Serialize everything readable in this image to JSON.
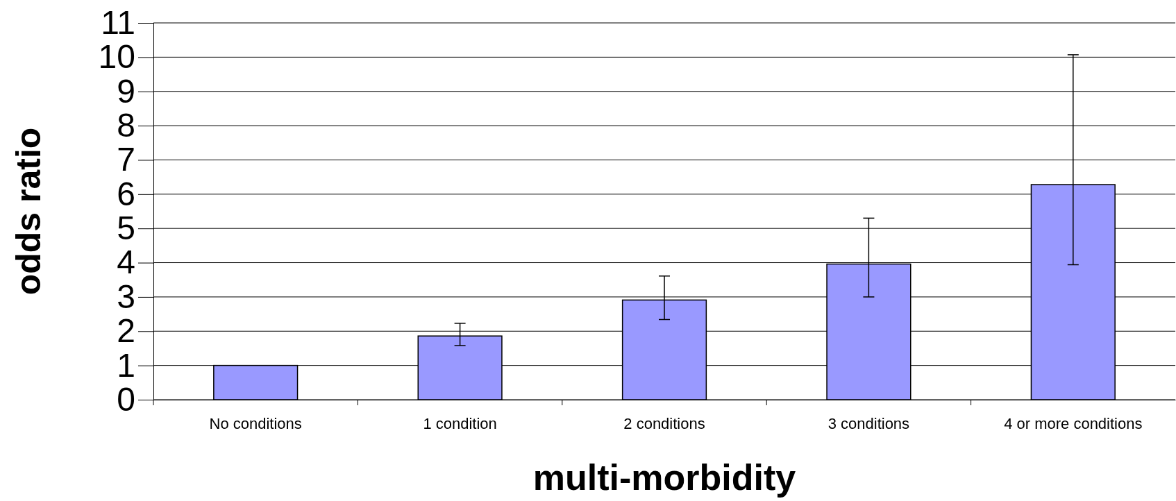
{
  "chart_data": {
    "type": "bar",
    "xlabel": "multi-morbidity",
    "ylabel": "odds ratio",
    "categories": [
      "No conditions",
      "1 condition",
      "2 conditions",
      "3 conditions",
      "4 or more conditions"
    ],
    "series": [
      {
        "color": "#9999ff",
        "values": [
          1,
          1.86,
          2.91,
          3.96,
          6.28
        ],
        "errors": [
          null,
          [
            1.58,
            2.23
          ],
          [
            2.34,
            3.61
          ],
          [
            3.0,
            5.3
          ],
          [
            3.94,
            10.07
          ]
        ]
      }
    ],
    "ylim": [
      0,
      11
    ],
    "yticks": [
      0,
      1,
      2,
      3,
      4,
      5,
      6,
      7,
      8,
      9,
      10,
      11
    ],
    "grid": "y"
  }
}
